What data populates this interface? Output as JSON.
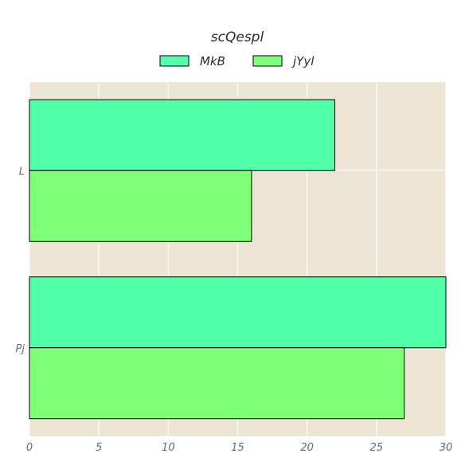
{
  "chart_data": {
    "type": "bar",
    "orientation": "horizontal",
    "title": "scQespl",
    "xlabel": "",
    "ylabel": "",
    "categories": [
      "L",
      "Pj"
    ],
    "series": [
      {
        "name": "MkB",
        "values": [
          22,
          30
        ],
        "color": "#50ffa8"
      },
      {
        "name": "jYyl",
        "values": [
          16,
          27
        ],
        "color": "#80ff78"
      }
    ],
    "xlim": [
      0,
      30
    ],
    "xticks": [
      0,
      5,
      10,
      15,
      20,
      25,
      30
    ],
    "grid": true,
    "legend_position": "top-center",
    "plot_background": "#eee6d5",
    "grid_color": "#ffffff",
    "bar_edge_color": "#000000"
  }
}
